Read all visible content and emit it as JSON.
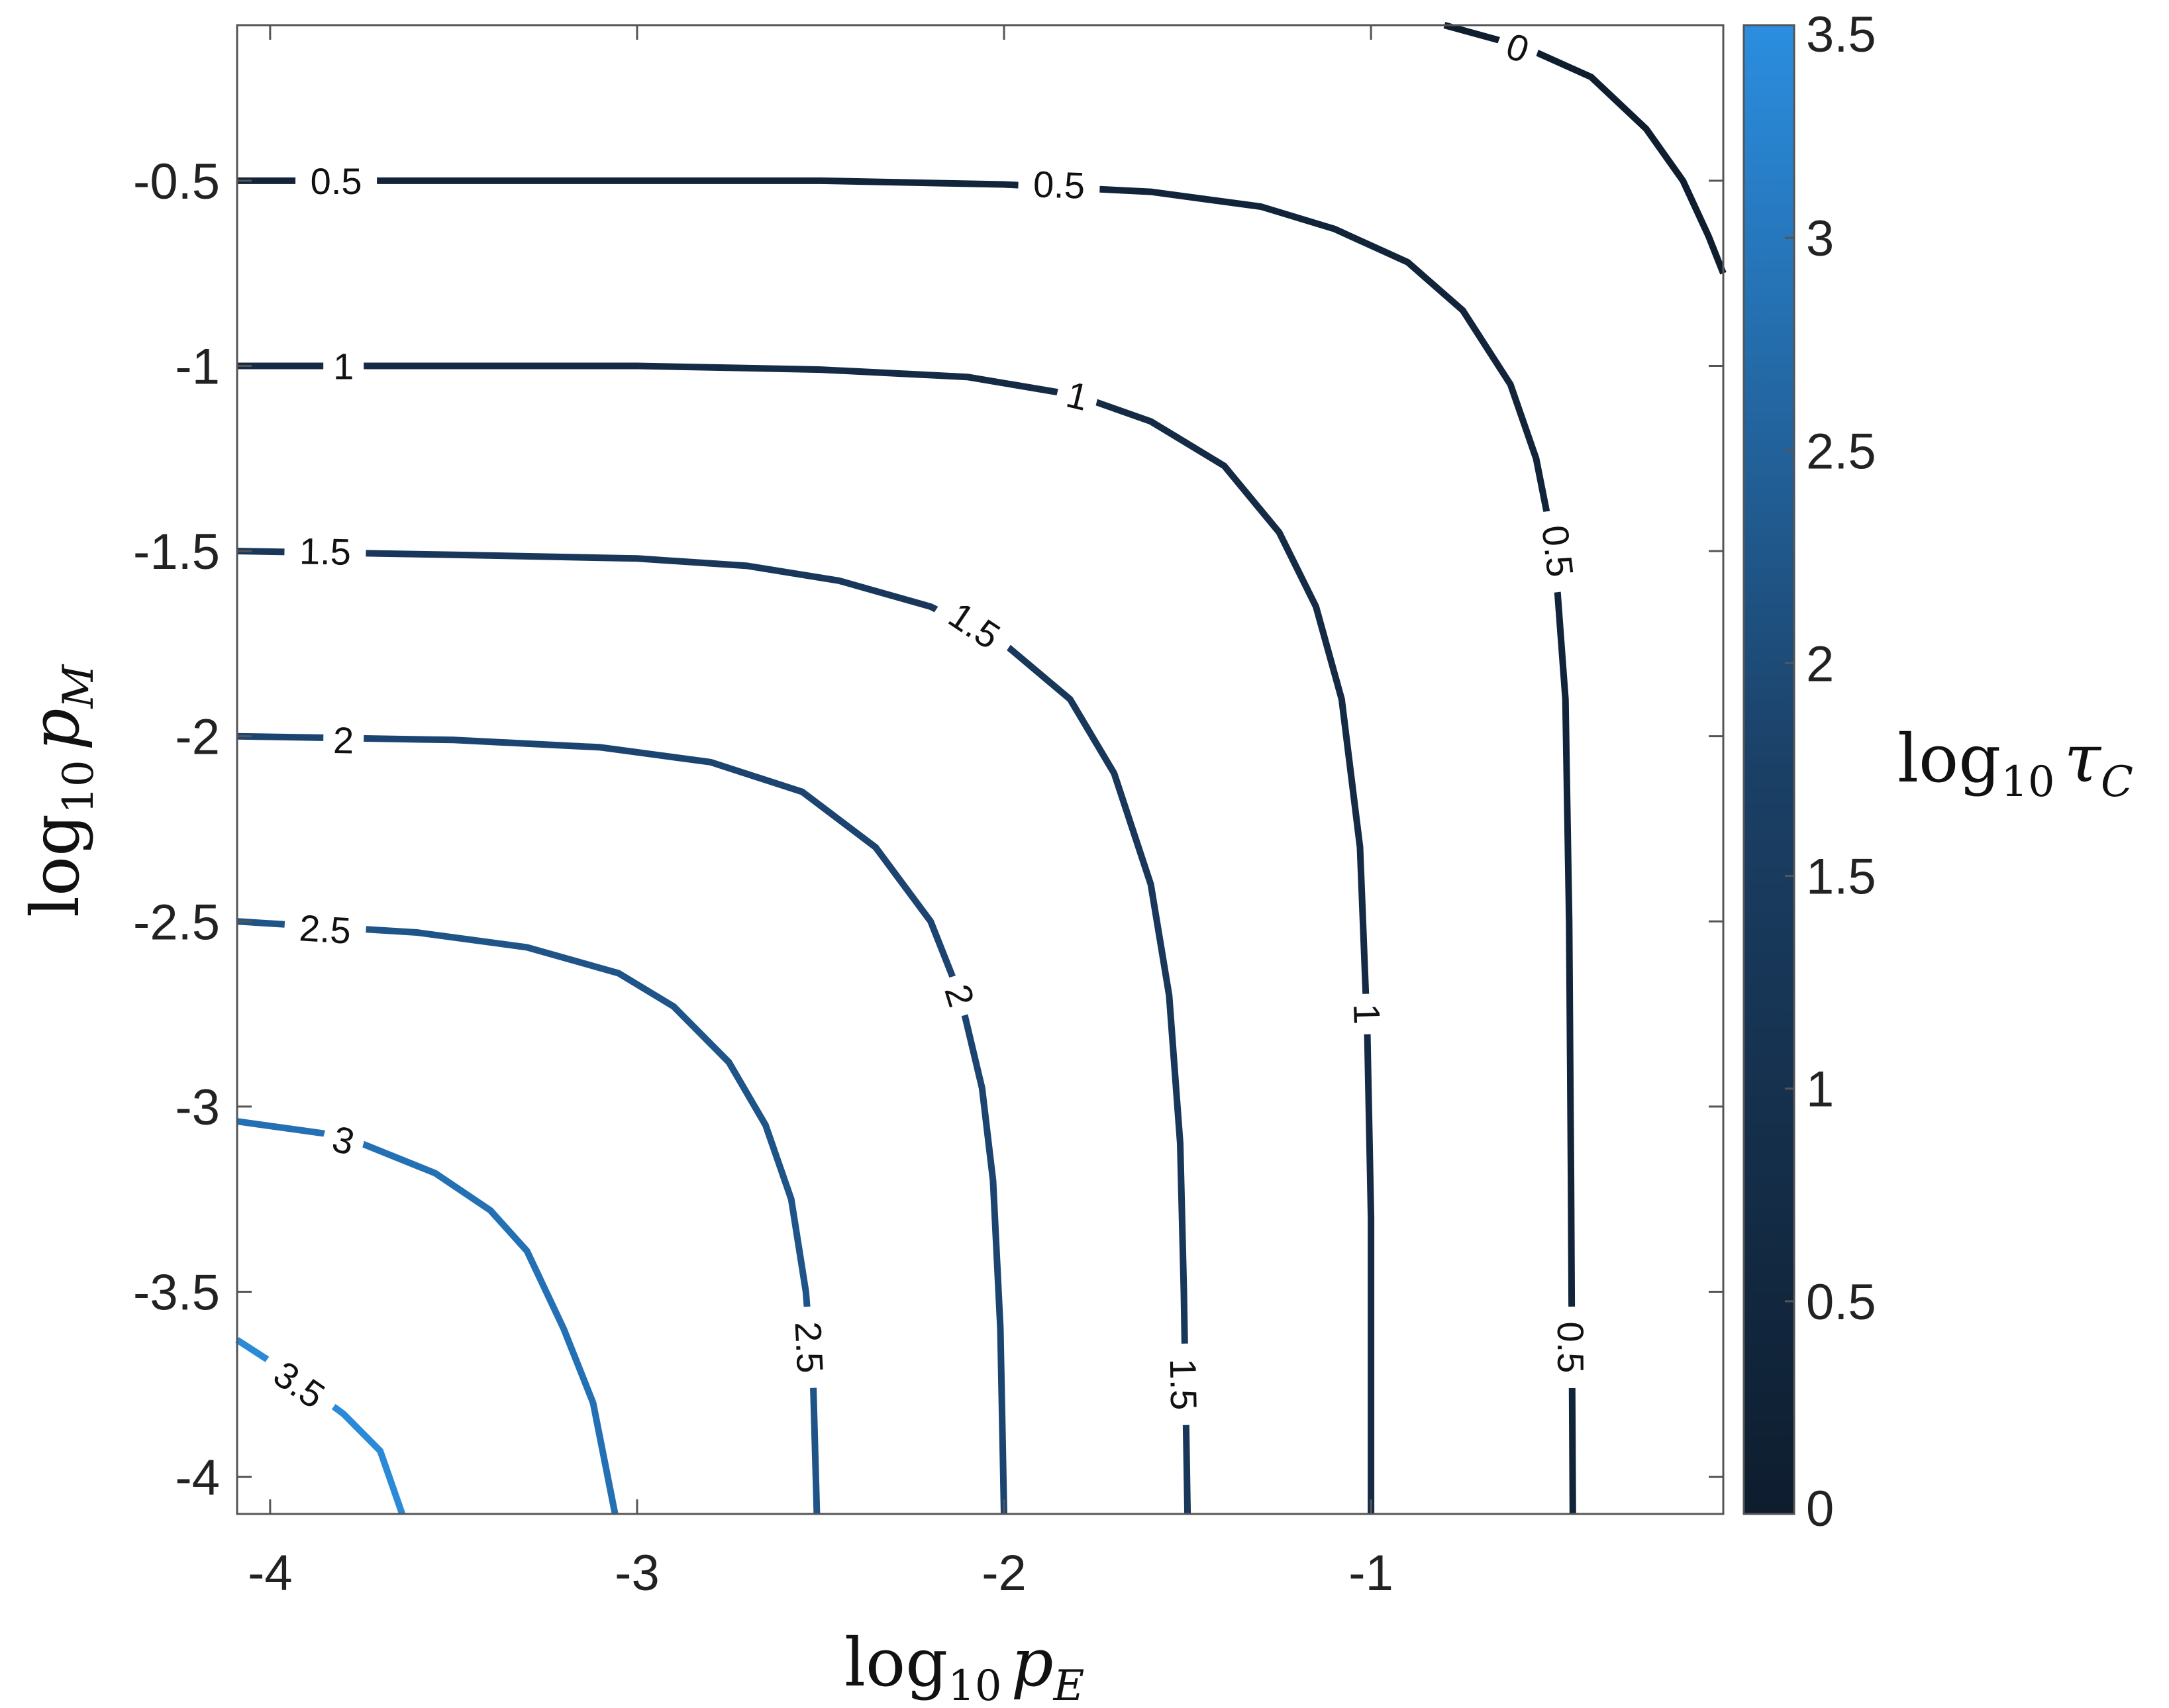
{
  "chart_data": {
    "type": "contour",
    "xlabel": {
      "main": "log",
      "sub": "10",
      "var": "p",
      "var_sub": "E"
    },
    "ylabel": {
      "main": "log",
      "sub": "10",
      "var": "p",
      "var_sub": "M"
    },
    "colorbar_label": {
      "main": "log",
      "sub": "10",
      "var": "τ",
      "var_sub": "C"
    },
    "xlim": [
      -4.09,
      -0.04
    ],
    "ylim": [
      -4.1,
      -0.08
    ],
    "x_ticks": [
      -4,
      -3,
      -2,
      -1
    ],
    "x_tick_labels": [
      "-4",
      "-3",
      "-2",
      "-1"
    ],
    "y_ticks": [
      -0.5,
      -1,
      -1.5,
      -2,
      -2.5,
      -3,
      -3.5,
      -4
    ],
    "y_tick_labels": [
      "-0.5",
      "-1",
      "-1.5",
      "-2",
      "-2.5",
      "-3",
      "-3.5",
      "-4"
    ],
    "colorbar": {
      "range": [
        0,
        3.5
      ],
      "ticks": [
        0,
        0.5,
        1,
        1.5,
        2,
        2.5,
        3,
        3.5
      ],
      "tick_labels": [
        "0",
        "0.5",
        "1",
        "1.5",
        "2",
        "2.5",
        "3",
        "3.5"
      ],
      "color_low": "#0e1d2e",
      "color_high": "#2b8ee0"
    },
    "grid": false,
    "contours": [
      {
        "level": 0,
        "label_text": "0",
        "color": "#0f1e2f",
        "points": [
          [
            -0.8,
            -0.08
          ],
          [
            -0.58,
            -0.14
          ],
          [
            -0.4,
            -0.22
          ],
          [
            -0.25,
            -0.36
          ],
          [
            -0.15,
            -0.5
          ],
          [
            -0.08,
            -0.65
          ],
          [
            -0.04,
            -0.75
          ]
        ],
        "labels": [
          [
            -0.6,
            -0.14
          ]
        ]
      },
      {
        "level": 0.5,
        "label_text": "0.5",
        "color": "#12243a",
        "points": [
          [
            -4.09,
            -0.5
          ],
          [
            -3,
            -0.5
          ],
          [
            -2.5,
            -0.5
          ],
          [
            -2,
            -0.51
          ],
          [
            -1.6,
            -0.53
          ],
          [
            -1.3,
            -0.57
          ],
          [
            -1.1,
            -0.63
          ],
          [
            -0.9,
            -0.72
          ],
          [
            -0.75,
            -0.85
          ],
          [
            -0.62,
            -1.05
          ],
          [
            -0.55,
            -1.25
          ],
          [
            -0.5,
            -1.5
          ],
          [
            -0.47,
            -1.9
          ],
          [
            -0.46,
            -2.5
          ],
          [
            -0.455,
            -3.2
          ],
          [
            -0.45,
            -4.1
          ]
        ],
        "labels": [
          [
            -3.82,
            -0.5
          ],
          [
            -1.85,
            -0.51
          ],
          [
            -0.49,
            -1.5
          ],
          [
            -0.455,
            -3.65
          ]
        ]
      },
      {
        "level": 1,
        "label_text": "1",
        "color": "#152b45",
        "points": [
          [
            -4.09,
            -1
          ],
          [
            -3,
            -1
          ],
          [
            -2.5,
            -1.01
          ],
          [
            -2.1,
            -1.03
          ],
          [
            -1.8,
            -1.08
          ],
          [
            -1.6,
            -1.15
          ],
          [
            -1.4,
            -1.27
          ],
          [
            -1.25,
            -1.45
          ],
          [
            -1.15,
            -1.65
          ],
          [
            -1.08,
            -1.9
          ],
          [
            -1.03,
            -2.3
          ],
          [
            -1.01,
            -2.8
          ],
          [
            -1,
            -3.3
          ],
          [
            -1,
            -4.1
          ]
        ],
        "labels": [
          [
            -3.8,
            -1
          ],
          [
            -1.8,
            -1.08
          ],
          [
            -1.01,
            -2.75
          ]
        ]
      },
      {
        "level": 1.5,
        "label_text": "1.5",
        "color": "#19375a",
        "points": [
          [
            -4.09,
            -1.5
          ],
          [
            -3.5,
            -1.51
          ],
          [
            -3,
            -1.52
          ],
          [
            -2.7,
            -1.54
          ],
          [
            -2.45,
            -1.58
          ],
          [
            -2.2,
            -1.65
          ],
          [
            -2,
            -1.75
          ],
          [
            -1.82,
            -1.9
          ],
          [
            -1.7,
            -2.1
          ],
          [
            -1.6,
            -2.4
          ],
          [
            -1.55,
            -2.7
          ],
          [
            -1.52,
            -3.1
          ],
          [
            -1.51,
            -3.5
          ],
          [
            -1.5,
            -4.1
          ]
        ],
        "labels": [
          [
            -3.85,
            -1.5
          ],
          [
            -2.08,
            -1.7
          ],
          [
            -1.51,
            -3.75
          ]
        ]
      },
      {
        "level": 2,
        "label_text": "2",
        "color": "#1c4470",
        "points": [
          [
            -4.09,
            -2
          ],
          [
            -3.5,
            -2.01
          ],
          [
            -3.1,
            -2.03
          ],
          [
            -2.8,
            -2.07
          ],
          [
            -2.55,
            -2.15
          ],
          [
            -2.35,
            -2.3
          ],
          [
            -2.2,
            -2.5
          ],
          [
            -2.12,
            -2.7
          ],
          [
            -2.06,
            -2.95
          ],
          [
            -2.03,
            -3.2
          ],
          [
            -2.01,
            -3.6
          ],
          [
            -2,
            -4.1
          ]
        ],
        "labels": [
          [
            -3.8,
            -2.01
          ],
          [
            -2.12,
            -2.7
          ]
        ]
      },
      {
        "level": 2.5,
        "label_text": "2.5",
        "color": "#1f5488",
        "points": [
          [
            -4.09,
            -2.5
          ],
          [
            -3.6,
            -2.53
          ],
          [
            -3.3,
            -2.57
          ],
          [
            -3.05,
            -2.64
          ],
          [
            -2.9,
            -2.73
          ],
          [
            -2.75,
            -2.88
          ],
          [
            -2.65,
            -3.05
          ],
          [
            -2.58,
            -3.25
          ],
          [
            -2.54,
            -3.5
          ],
          [
            -2.52,
            -3.75
          ],
          [
            -2.51,
            -4.1
          ]
        ],
        "labels": [
          [
            -3.85,
            -2.52
          ],
          [
            -2.53,
            -3.65
          ]
        ]
      },
      {
        "level": 3,
        "label_text": "3",
        "color": "#2470b5",
        "points": [
          [
            -4.09,
            -3.04
          ],
          [
            -3.8,
            -3.08
          ],
          [
            -3.55,
            -3.18
          ],
          [
            -3.4,
            -3.28
          ],
          [
            -3.3,
            -3.39
          ],
          [
            -3.2,
            -3.6
          ],
          [
            -3.12,
            -3.8
          ],
          [
            -3.06,
            -4.1
          ]
        ],
        "labels": [
          [
            -3.8,
            -3.09
          ]
        ]
      },
      {
        "level": 3.5,
        "label_text": "3.5",
        "color": "#2a8ad8",
        "points": [
          [
            -4.09,
            -3.63
          ],
          [
            -3.95,
            -3.72
          ],
          [
            -3.8,
            -3.83
          ],
          [
            -3.7,
            -3.93
          ],
          [
            -3.64,
            -4.1
          ]
        ],
        "labels": [
          [
            -3.92,
            -3.75
          ]
        ]
      }
    ]
  }
}
